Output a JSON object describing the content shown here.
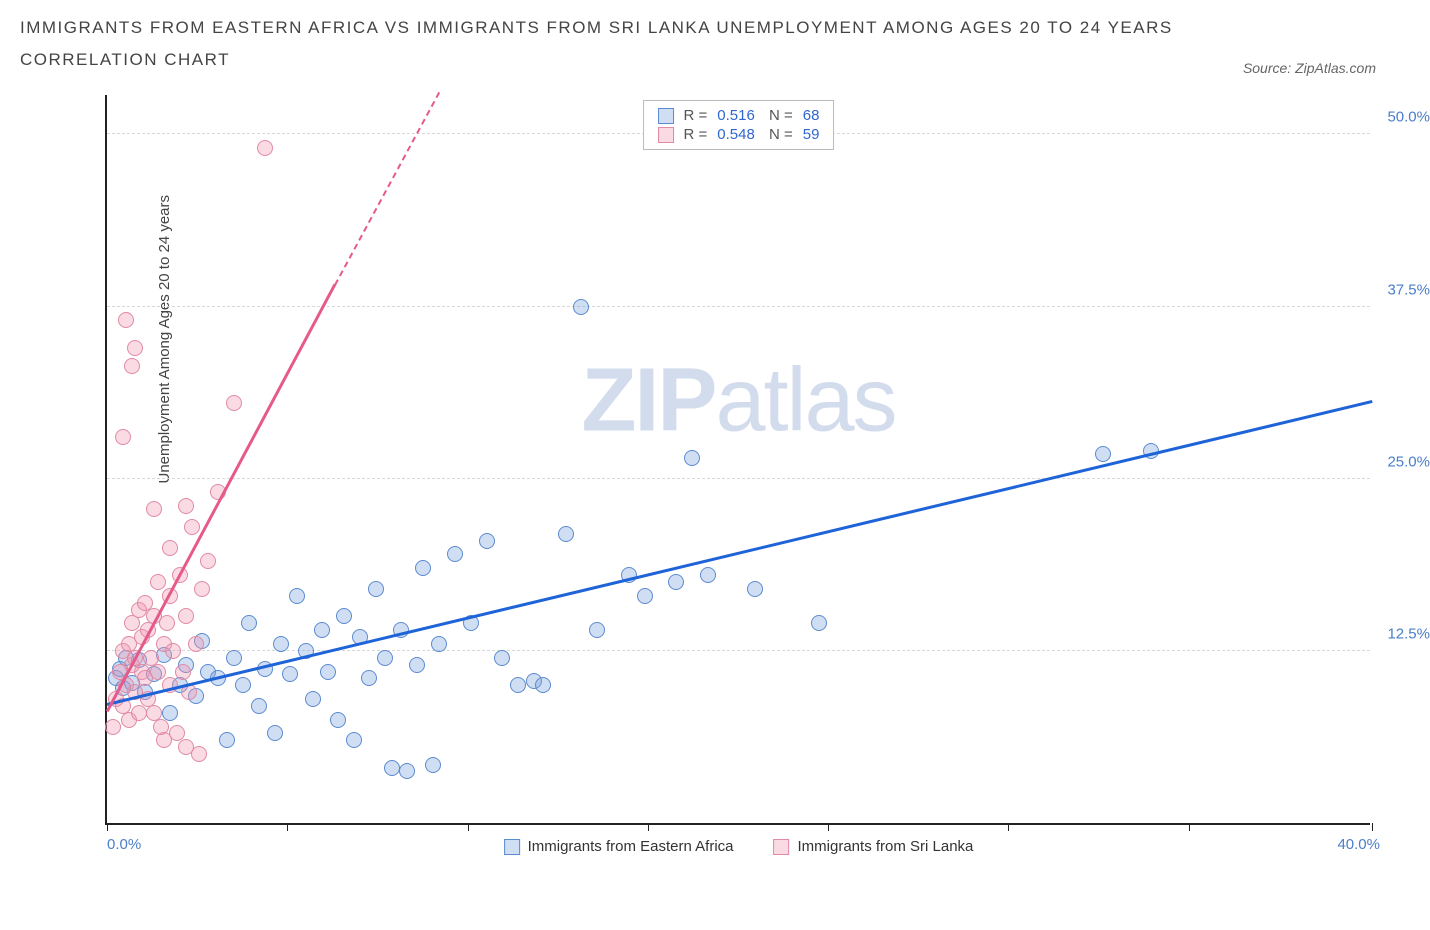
{
  "title_line1": "IMMIGRANTS FROM EASTERN AFRICA VS IMMIGRANTS FROM SRI LANKA UNEMPLOYMENT AMONG AGES 20 TO 24 YEARS",
  "title_line2": "CORRELATION CHART",
  "source_prefix": "Source: ",
  "source_name": "ZipAtlas.com",
  "watermark_bold": "ZIP",
  "watermark_light": "atlas",
  "y_axis_label": "Unemployment Among Ages 20 to 24 years",
  "chart": {
    "type": "scatter",
    "xlim": [
      0,
      40
    ],
    "ylim": [
      0,
      53
    ],
    "x_tick_positions": [
      0,
      5.7,
      11.4,
      17.1,
      22.8,
      28.5,
      34.2,
      40
    ],
    "y_gridlines": [
      12.5,
      25.0,
      37.5,
      50.0
    ],
    "y_tick_labels": [
      "12.5%",
      "25.0%",
      "37.5%",
      "50.0%"
    ],
    "x_min_label": "0.0%",
    "x_max_label": "40.0%",
    "background_color": "#ffffff",
    "grid_color": "#d8d8d8",
    "series": [
      {
        "name": "Immigrants from Eastern Africa",
        "color_fill": "rgba(120,160,220,0.35)",
        "color_stroke": "#5b8bd0",
        "trend_color": "#1e64d8",
        "marker_radius": 8,
        "R": "0.516",
        "N": "68",
        "trend": {
          "x1": 0,
          "y1": 8.5,
          "x2": 40,
          "y2": 30.5
        },
        "points": [
          [
            0.3,
            10.5
          ],
          [
            0.4,
            11.2
          ],
          [
            0.5,
            9.8
          ],
          [
            0.6,
            12.0
          ],
          [
            0.8,
            10.2
          ],
          [
            1.0,
            11.8
          ],
          [
            1.2,
            9.5
          ],
          [
            1.5,
            10.8
          ],
          [
            1.8,
            12.2
          ],
          [
            2.0,
            8.0
          ],
          [
            2.3,
            10.0
          ],
          [
            2.5,
            11.5
          ],
          [
            2.8,
            9.2
          ],
          [
            3.0,
            13.2
          ],
          [
            3.2,
            11.0
          ],
          [
            3.5,
            10.5
          ],
          [
            3.8,
            6.0
          ],
          [
            4.0,
            12.0
          ],
          [
            4.3,
            10.0
          ],
          [
            4.5,
            14.5
          ],
          [
            4.8,
            8.5
          ],
          [
            5.0,
            11.2
          ],
          [
            5.3,
            6.5
          ],
          [
            5.5,
            13.0
          ],
          [
            5.8,
            10.8
          ],
          [
            6.0,
            16.5
          ],
          [
            6.3,
            12.5
          ],
          [
            6.5,
            9.0
          ],
          [
            6.8,
            14.0
          ],
          [
            7.0,
            11.0
          ],
          [
            7.3,
            7.5
          ],
          [
            7.5,
            15.0
          ],
          [
            7.8,
            6.0
          ],
          [
            8.0,
            13.5
          ],
          [
            8.3,
            10.5
          ],
          [
            8.5,
            17.0
          ],
          [
            8.8,
            12.0
          ],
          [
            9.0,
            4.0
          ],
          [
            9.3,
            14.0
          ],
          [
            9.5,
            3.8
          ],
          [
            9.8,
            11.5
          ],
          [
            10.0,
            18.5
          ],
          [
            10.3,
            4.2
          ],
          [
            10.5,
            13.0
          ],
          [
            11.0,
            19.5
          ],
          [
            11.5,
            14.5
          ],
          [
            12.0,
            20.5
          ],
          [
            12.5,
            12.0
          ],
          [
            13.0,
            10.0
          ],
          [
            13.5,
            10.3
          ],
          [
            13.8,
            10.0
          ],
          [
            14.5,
            21.0
          ],
          [
            15.0,
            37.5
          ],
          [
            15.5,
            14.0
          ],
          [
            16.5,
            18.0
          ],
          [
            17.0,
            16.5
          ],
          [
            18.0,
            17.5
          ],
          [
            18.5,
            26.5
          ],
          [
            19.0,
            18.0
          ],
          [
            20.5,
            17.0
          ],
          [
            22.5,
            14.5
          ],
          [
            31.5,
            26.8
          ],
          [
            33.0,
            27.0
          ]
        ]
      },
      {
        "name": "Immigrants from Sri Lanka",
        "color_fill": "rgba(240,150,175,0.35)",
        "color_stroke": "#e08aa5",
        "trend_color": "#e55a8a",
        "marker_radius": 8,
        "R": "0.548",
        "N": "59",
        "trend": {
          "x1": 0,
          "y1": 8.0,
          "x2": 7.2,
          "y2": 39.0
        },
        "trend_dash": {
          "x1": 7.2,
          "y1": 39.0,
          "x2": 10.5,
          "y2": 53.0
        },
        "points": [
          [
            0.2,
            7.0
          ],
          [
            0.3,
            9.0
          ],
          [
            0.4,
            11.0
          ],
          [
            0.5,
            8.5
          ],
          [
            0.5,
            12.5
          ],
          [
            0.6,
            10.0
          ],
          [
            0.7,
            13.0
          ],
          [
            0.7,
            7.5
          ],
          [
            0.8,
            11.5
          ],
          [
            0.8,
            14.5
          ],
          [
            0.9,
            9.5
          ],
          [
            0.9,
            12.0
          ],
          [
            1.0,
            15.5
          ],
          [
            1.0,
            8.0
          ],
          [
            1.1,
            11.0
          ],
          [
            1.1,
            13.5
          ],
          [
            1.2,
            10.5
          ],
          [
            1.2,
            16.0
          ],
          [
            1.3,
            9.0
          ],
          [
            1.3,
            14.0
          ],
          [
            1.4,
            12.0
          ],
          [
            1.5,
            8.0
          ],
          [
            1.5,
            15.0
          ],
          [
            1.6,
            11.0
          ],
          [
            1.6,
            17.5
          ],
          [
            1.7,
            7.0
          ],
          [
            1.8,
            13.0
          ],
          [
            1.8,
            6.0
          ],
          [
            1.9,
            14.5
          ],
          [
            2.0,
            10.0
          ],
          [
            2.0,
            16.5
          ],
          [
            2.1,
            12.5
          ],
          [
            2.2,
            6.5
          ],
          [
            2.3,
            18.0
          ],
          [
            2.4,
            11.0
          ],
          [
            2.5,
            5.5
          ],
          [
            2.5,
            15.0
          ],
          [
            2.6,
            9.5
          ],
          [
            2.7,
            21.5
          ],
          [
            2.8,
            13.0
          ],
          [
            2.9,
            5.0
          ],
          [
            3.0,
            17.0
          ],
          [
            0.5,
            28.0
          ],
          [
            0.6,
            36.5
          ],
          [
            0.8,
            33.2
          ],
          [
            0.9,
            34.5
          ],
          [
            1.5,
            22.8
          ],
          [
            2.0,
            20.0
          ],
          [
            2.5,
            23.0
          ],
          [
            3.2,
            19.0
          ],
          [
            3.5,
            24.0
          ],
          [
            4.0,
            30.5
          ],
          [
            5.0,
            49.0
          ]
        ]
      }
    ]
  },
  "legend_bottom": {
    "items": [
      {
        "label": "Immigrants from Eastern Africa"
      },
      {
        "label": "Immigrants from Sri Lanka"
      }
    ]
  }
}
